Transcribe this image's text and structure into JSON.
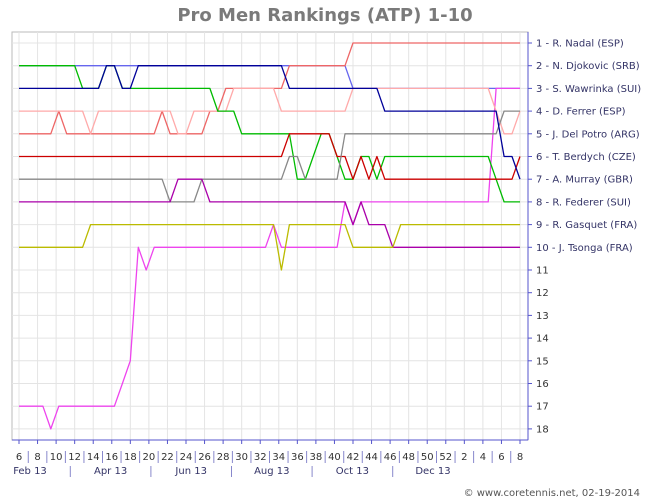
{
  "title": "Pro Men Rankings (ATP) 1-10",
  "credit": "© www.coretennis.net, 02-19-2014",
  "chart_data": {
    "type": "line",
    "title": "Pro Men Rankings (ATP) 1-10",
    "y_axis": {
      "min": 1,
      "max": 18,
      "inverted": true,
      "ticks": [
        11,
        12,
        13,
        14,
        15,
        16,
        17,
        18
      ]
    },
    "x_ticks": [
      "6",
      "8",
      "10",
      "12",
      "14",
      "16",
      "18",
      "20",
      "22",
      "24",
      "26",
      "28",
      "30",
      "32",
      "34",
      "36",
      "38",
      "40",
      "42",
      "44",
      "46",
      "48",
      "50",
      "52",
      "2",
      "4",
      "6",
      "8"
    ],
    "month_labels": [
      "Feb 13",
      "Apr 13",
      "Jun 13",
      "Aug 13",
      "Oct 13",
      "Dec 13"
    ],
    "grid": true,
    "legend_position": "right",
    "series": [
      {
        "name": "1 - R. Nadal (ESP)",
        "color": "#6666ee",
        "values": [
          2,
          2,
          2,
          2,
          2,
          2,
          2,
          2,
          2,
          2,
          2,
          2,
          2,
          2,
          2,
          2,
          2,
          2,
          2,
          2,
          2,
          2,
          2,
          2,
          2,
          2,
          2,
          2,
          2,
          2,
          2,
          2,
          2,
          2,
          2,
          2,
          2,
          2,
          2,
          2,
          2,
          2,
          3,
          3,
          3,
          3,
          3,
          3,
          3,
          3,
          3,
          3,
          3,
          3,
          3,
          3,
          3,
          3,
          3,
          3,
          3,
          3,
          3,
          3
        ]
      },
      {
        "name": "2 - N. Djokovic (SRB)",
        "color": "#ee6666",
        "values": [
          5,
          5,
          5,
          5,
          5,
          4,
          5,
          5,
          5,
          5,
          5,
          5,
          5,
          5,
          5,
          5,
          5,
          5,
          4,
          5,
          5,
          5,
          5,
          5,
          4,
          4,
          3,
          3,
          3,
          3,
          3,
          3,
          3,
          3,
          2,
          2,
          2,
          2,
          2,
          2,
          2,
          2,
          1,
          1,
          1,
          1,
          1,
          1,
          1,
          1,
          1,
          1,
          1,
          1,
          1,
          1,
          1,
          1,
          1,
          1,
          1,
          1,
          1,
          1
        ]
      },
      {
        "name": "3 - S. Wawrinka (SUI)",
        "color": "#ee44ee",
        "values": [
          17,
          17,
          17,
          17,
          18,
          17,
          17,
          17,
          17,
          17,
          17,
          17,
          17,
          16,
          15,
          10,
          11,
          10,
          10,
          10,
          10,
          10,
          10,
          10,
          10,
          10,
          10,
          10,
          10,
          10,
          10,
          10,
          9,
          10,
          10,
          10,
          10,
          10,
          10,
          10,
          10,
          8,
          9,
          8,
          8,
          8,
          8,
          8,
          8,
          8,
          8,
          8,
          8,
          8,
          8,
          8,
          8,
          8,
          8,
          8,
          3,
          3,
          3,
          3
        ]
      },
      {
        "name": "4 - D. Ferrer (ESP)",
        "color": "#ffaaaa",
        "values": [
          4,
          4,
          4,
          4,
          4,
          4,
          4,
          4,
          4,
          5,
          4,
          4,
          4,
          4,
          4,
          4,
          4,
          4,
          4,
          4,
          5,
          5,
          4,
          4,
          4,
          4,
          4,
          3,
          3,
          3,
          3,
          3,
          3,
          4,
          4,
          4,
          4,
          4,
          4,
          4,
          4,
          4,
          3,
          3,
          3,
          3,
          3,
          3,
          3,
          3,
          3,
          3,
          3,
          3,
          3,
          3,
          3,
          3,
          3,
          3,
          4,
          5,
          5,
          4
        ]
      },
      {
        "name": "5 - J. Del Potro (ARG)",
        "color": "#00bb00",
        "values": [
          2,
          2,
          2,
          2,
          2,
          2,
          2,
          2,
          3,
          3,
          3,
          2,
          2,
          3,
          3,
          3,
          3,
          3,
          3,
          3,
          3,
          3,
          3,
          3,
          3,
          4,
          4,
          4,
          5,
          5,
          5,
          5,
          5,
          5,
          5,
          7,
          7,
          6,
          5,
          5,
          6,
          7,
          7,
          6,
          6,
          7,
          6,
          6,
          6,
          6,
          6,
          6,
          6,
          6,
          6,
          6,
          6,
          6,
          6,
          6,
          7,
          8,
          8,
          8
        ]
      },
      {
        "name": "6 - T. Berdych (CZE)",
        "color": "#cc0000",
        "values": [
          6,
          6,
          6,
          6,
          6,
          6,
          6,
          6,
          6,
          6,
          6,
          6,
          6,
          6,
          6,
          6,
          6,
          6,
          6,
          6,
          6,
          6,
          6,
          6,
          6,
          6,
          6,
          6,
          6,
          6,
          6,
          6,
          6,
          6,
          5,
          5,
          5,
          5,
          5,
          5,
          6,
          6,
          7,
          6,
          7,
          6,
          7,
          7,
          7,
          7,
          7,
          7,
          7,
          7,
          7,
          7,
          7,
          7,
          7,
          7,
          7,
          7,
          7,
          6
        ]
      },
      {
        "name": "7 - A. Murray (GBR)",
        "color": "#888888",
        "values": [
          7,
          7,
          7,
          7,
          7,
          7,
          7,
          7,
          7,
          7,
          7,
          7,
          7,
          7,
          7,
          7,
          7,
          7,
          7,
          8,
          8,
          8,
          8,
          7,
          7,
          7,
          7,
          7,
          7,
          7,
          7,
          7,
          7,
          7,
          6,
          6,
          7,
          7,
          7,
          7,
          7,
          5,
          5,
          5,
          5,
          5,
          5,
          5,
          5,
          5,
          5,
          5,
          5,
          5,
          5,
          5,
          5,
          5,
          5,
          5,
          5,
          4,
          4,
          4
        ]
      },
      {
        "name": "8 - R. Federer (SUI)",
        "color": "#aa00aa",
        "values": [
          8,
          8,
          8,
          8,
          8,
          8,
          8,
          8,
          8,
          8,
          8,
          8,
          8,
          8,
          8,
          8,
          8,
          8,
          8,
          8,
          7,
          7,
          7,
          7,
          8,
          8,
          8,
          8,
          8,
          8,
          8,
          8,
          8,
          8,
          8,
          8,
          8,
          8,
          8,
          8,
          8,
          8,
          9,
          8,
          9,
          9,
          9,
          10,
          10,
          10,
          10,
          10,
          10,
          10,
          10,
          10,
          10,
          10,
          10,
          10,
          10,
          10,
          10,
          10
        ]
      },
      {
        "name": "9 - R. Gasquet (FRA)",
        "color": "#bbbb00",
        "values": [
          10,
          10,
          10,
          10,
          10,
          10,
          10,
          10,
          10,
          9,
          9,
          9,
          9,
          9,
          9,
          9,
          9,
          9,
          9,
          9,
          9,
          9,
          9,
          9,
          9,
          9,
          9,
          9,
          9,
          9,
          9,
          9,
          9,
          11,
          9,
          9,
          9,
          9,
          9,
          9,
          9,
          9,
          10,
          10,
          10,
          10,
          10,
          10,
          9,
          9,
          9,
          9,
          9,
          9,
          9,
          9,
          9,
          9,
          9,
          9,
          9,
          9,
          9,
          9
        ]
      },
      {
        "name": "10 - J. Tsonga (FRA)",
        "color": "#000099",
        "values": [
          3,
          3,
          3,
          3,
          3,
          3,
          3,
          3,
          3,
          3,
          3,
          2,
          2,
          3,
          3,
          2,
          2,
          2,
          2,
          2,
          2,
          2,
          2,
          2,
          2,
          2,
          2,
          2,
          2,
          2,
          2,
          2,
          2,
          2,
          3,
          3,
          3,
          3,
          3,
          3,
          3,
          3,
          3,
          3,
          3,
          3,
          4,
          4,
          4,
          4,
          4,
          4,
          4,
          4,
          4,
          4,
          4,
          4,
          4,
          4,
          4,
          6,
          6,
          7
        ]
      }
    ]
  }
}
